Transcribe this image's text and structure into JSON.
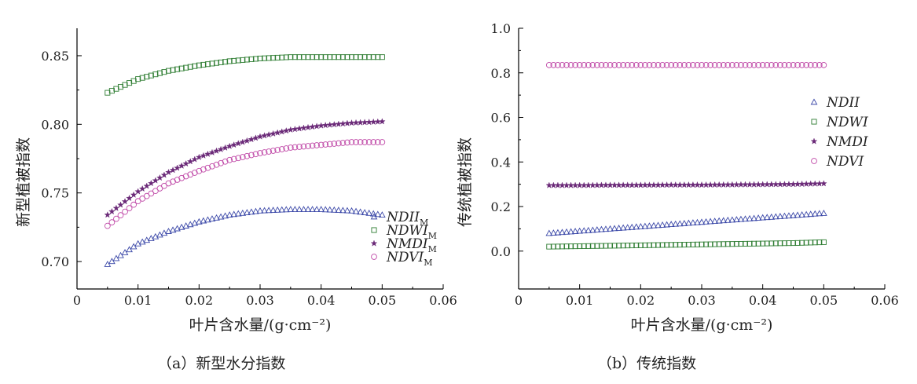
{
  "figure": {
    "caption_a": "（a）新型水分指数",
    "caption_b": "（b）传统指数"
  },
  "chart_data": [
    {
      "type": "scatter",
      "panel": "a",
      "xlabel": "叶片含水量/(g·cm⁻²)",
      "ylabel": "新型植被指数",
      "xlim": [
        0,
        0.06
      ],
      "ylim": [
        0.68,
        0.87
      ],
      "xticks": [
        0,
        0.01,
        0.02,
        0.03,
        0.04,
        0.05,
        0.06
      ],
      "xtick_labels": [
        "0",
        "0.01",
        "0.02",
        "0.03",
        "0.04",
        "0.05",
        "0.06"
      ],
      "yticks": [
        0.7,
        0.75,
        0.8,
        0.85
      ],
      "ytick_labels": [
        "0.70",
        "0.75",
        "0.80",
        "0.85"
      ],
      "grid": false,
      "legend_position": "bottom-right",
      "x": [
        0.005,
        0.01,
        0.015,
        0.02,
        0.025,
        0.03,
        0.035,
        0.04,
        0.045,
        0.05
      ],
      "series": [
        {
          "name": "NDII",
          "subscript": "M",
          "marker": "triangle",
          "color": "#3b48a8",
          "values": [
            0.698,
            0.713,
            0.722,
            0.729,
            0.734,
            0.737,
            0.738,
            0.738,
            0.737,
            0.734
          ]
        },
        {
          "name": "NDWI",
          "subscript": "M",
          "marker": "square",
          "color": "#2e7d32",
          "values": [
            0.823,
            0.833,
            0.839,
            0.843,
            0.846,
            0.848,
            0.849,
            0.849,
            0.849,
            0.849
          ]
        },
        {
          "name": "NMDI",
          "subscript": "M",
          "marker": "star",
          "color": "#6b2a78",
          "values": [
            0.734,
            0.751,
            0.765,
            0.776,
            0.784,
            0.791,
            0.796,
            0.799,
            0.801,
            0.802
          ]
        },
        {
          "name": "NDVI",
          "subscript": "M",
          "marker": "circle",
          "color": "#c04aa8",
          "values": [
            0.726,
            0.744,
            0.757,
            0.766,
            0.774,
            0.779,
            0.783,
            0.785,
            0.787,
            0.787
          ]
        }
      ]
    },
    {
      "type": "scatter",
      "panel": "b",
      "xlabel": "叶片含水量/(g·cm⁻²)",
      "ylabel": "传统植被指数",
      "xlim": [
        0,
        0.06
      ],
      "ylim": [
        -0.17,
        1.0
      ],
      "xticks": [
        0,
        0.01,
        0.02,
        0.03,
        0.04,
        0.05,
        0.06
      ],
      "xtick_labels": [
        "0",
        "0.01",
        "0.02",
        "0.03",
        "0.04",
        "0.05",
        "0.06"
      ],
      "yticks": [
        0.0,
        0.2,
        0.4,
        0.6,
        0.8,
        1.0
      ],
      "ytick_labels": [
        "0.0",
        "0.2",
        "0.4",
        "0.6",
        "0.8",
        "1.0"
      ],
      "grid": false,
      "legend_position": "top-right",
      "x": [
        0.005,
        0.01,
        0.015,
        0.02,
        0.025,
        0.03,
        0.035,
        0.04,
        0.045,
        0.05
      ],
      "series": [
        {
          "name": "NDII",
          "marker": "triangle",
          "color": "#3b48a8",
          "values": [
            0.08,
            0.09,
            0.1,
            0.11,
            0.12,
            0.13,
            0.14,
            0.15,
            0.16,
            0.17
          ]
        },
        {
          "name": "NDWI",
          "marker": "square",
          "color": "#2e7d32",
          "values": [
            0.02,
            0.022,
            0.024,
            0.026,
            0.028,
            0.03,
            0.032,
            0.034,
            0.036,
            0.04
          ]
        },
        {
          "name": "NMDI",
          "marker": "star",
          "color": "#6b2a78",
          "values": [
            0.295,
            0.295,
            0.296,
            0.296,
            0.297,
            0.297,
            0.298,
            0.299,
            0.3,
            0.303
          ]
        },
        {
          "name": "NDVI",
          "marker": "circle",
          "color": "#c04aa8",
          "values": [
            0.835,
            0.835,
            0.835,
            0.835,
            0.835,
            0.835,
            0.835,
            0.835,
            0.835,
            0.835
          ]
        }
      ]
    }
  ]
}
